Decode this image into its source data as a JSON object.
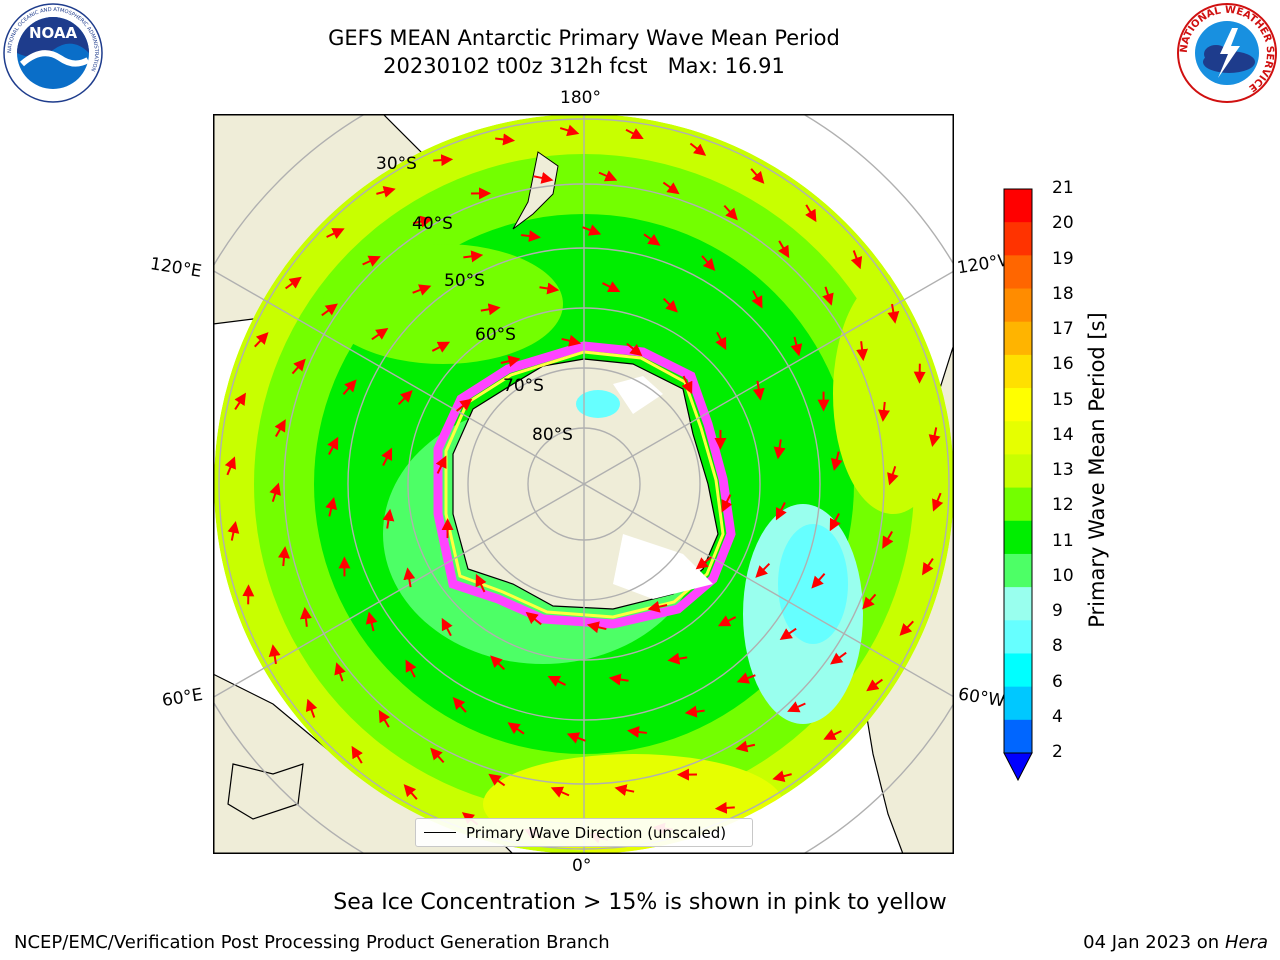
{
  "title": {
    "line1": "GEFS MEAN Antarctic Primary Wave Mean Period",
    "line2": "20230102 t00z 312h fcst   Max: 16.91"
  },
  "logos": {
    "left": {
      "name": "noaa-logo",
      "text": "NOAA",
      "ring_text": "NATIONAL OCEANIC AND ATMOSPHERIC ADMINISTRATION",
      "ring_bottom": "U.S. DEPARTMENT OF COMMERCE"
    },
    "right": {
      "name": "nws-logo",
      "ring_text": "NATIONAL WEATHER SERVICE"
    }
  },
  "map": {
    "longitude_labels": {
      "top": "180°",
      "bottom": "0°",
      "upper_left": "120°E",
      "upper_right": "120°W",
      "lower_left": "60°E",
      "lower_right": "60°W"
    },
    "latitude_labels": [
      "30°S",
      "40°S",
      "50°S",
      "60°S",
      "70°S",
      "80°S"
    ],
    "colors": {
      "land": "#efedd8",
      "ocean_border": "#000000",
      "grid": "#b0b0b0",
      "arrow": "#ff0000",
      "sea_ice_pink": "#ff44ff",
      "sea_ice_yellow": "#ffff40"
    }
  },
  "colorbar": {
    "label": "Primary Wave Mean Period [s]",
    "ticks": [
      "21",
      "20",
      "19",
      "18",
      "17",
      "16",
      "15",
      "14",
      "13",
      "12",
      "11",
      "10",
      "9",
      "8",
      "6",
      "4",
      "2"
    ],
    "colors": [
      "#ff0000",
      "#ff3300",
      "#ff6600",
      "#ff8c00",
      "#ffb400",
      "#ffe000",
      "#ffff00",
      "#e6ff00",
      "#c8ff00",
      "#73ff00",
      "#00ee00",
      "#4dff66",
      "#99ffee",
      "#66ffff",
      "#00ffff",
      "#00c8ff",
      "#0066ff"
    ],
    "extend_color": "#0000ff"
  },
  "legend": {
    "label": "Primary Wave Direction (unscaled)"
  },
  "caption": "Sea Ice Concentration > 15% is shown in pink to yellow",
  "footer": {
    "left": "NCEP/EMC/Verification Post Processing Product Generation Branch",
    "date": "04 Jan 2023 on ",
    "host": "Hera"
  }
}
